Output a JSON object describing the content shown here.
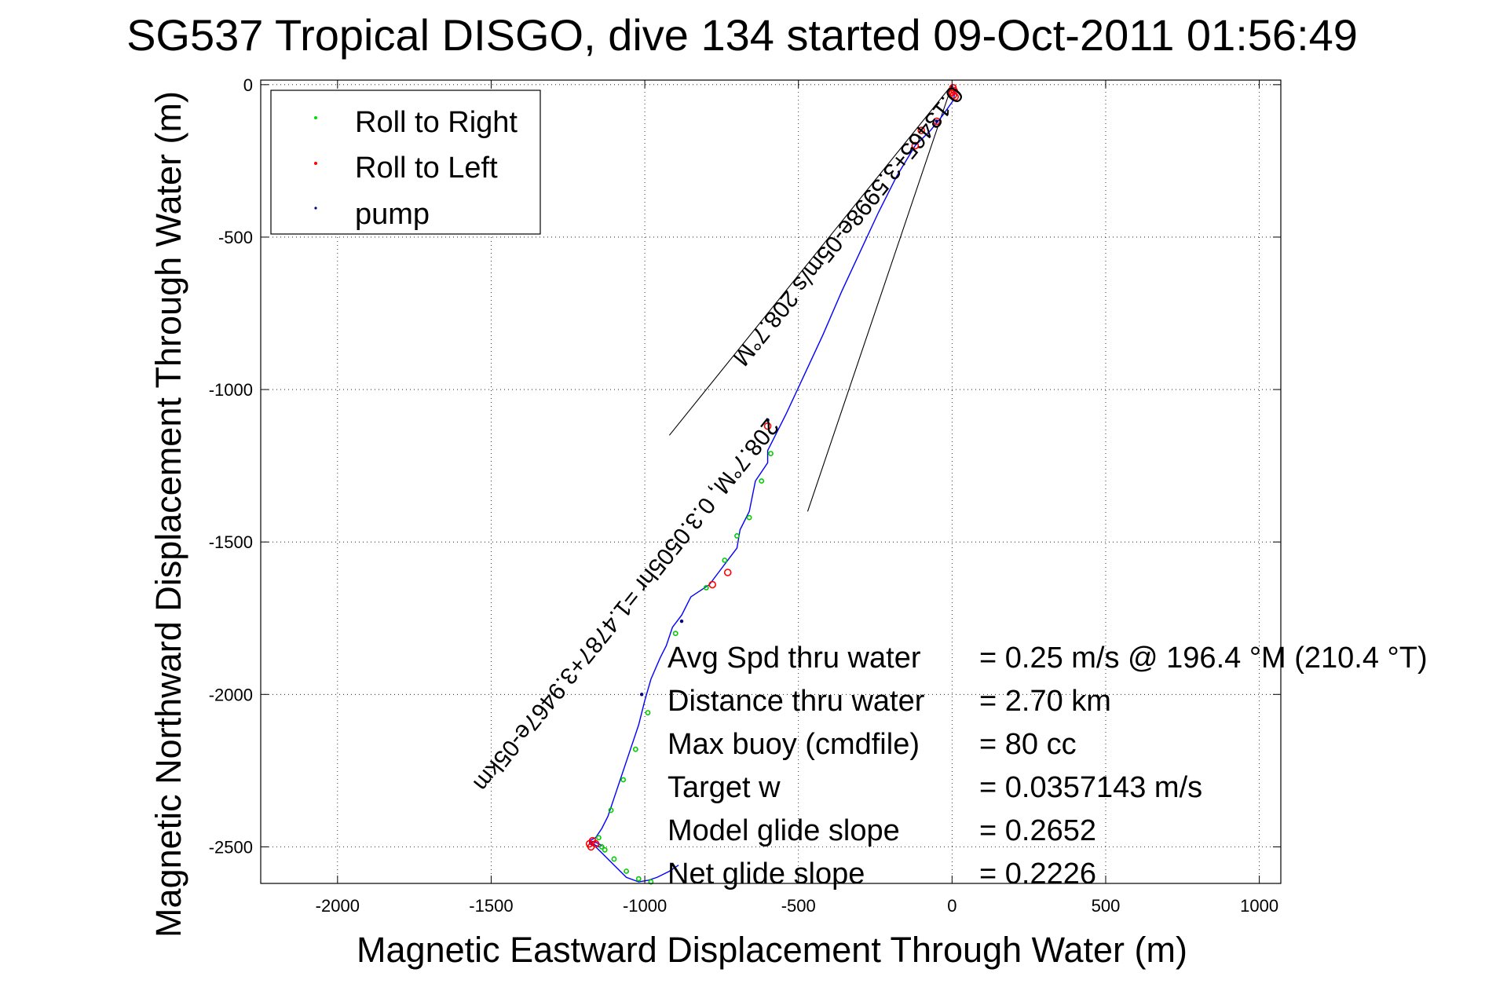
{
  "chart_data": {
    "type": "line",
    "title": "SG537 Tropical DISGO, dive 134 started 09-Oct-2011 01:56:49",
    "xlabel": "Magnetic Eastward Displacement Through Water (m)",
    "ylabel": "Magnetic Northward Displacement Through Water (m)",
    "xlim": [
      -2250,
      1070
    ],
    "ylim": [
      -2620,
      15
    ],
    "xticks": [
      -2000,
      -1500,
      -1000,
      -500,
      0,
      500,
      1000
    ],
    "xtick_labels": [
      "-2000",
      "-1500",
      "-1000",
      "-500",
      "0",
      "500",
      "1000"
    ],
    "yticks": [
      0,
      -500,
      -1000,
      -1500,
      -2000,
      -2500
    ],
    "ytick_labels": [
      "0",
      "-500",
      "-1000",
      "-1500",
      "-2000",
      "-2500"
    ],
    "grid": true,
    "legend_position": "top-left",
    "legend": [
      {
        "label": "Roll to Right",
        "color": "#00dd00"
      },
      {
        "label": "Roll to Left",
        "color": "#ff0000"
      },
      {
        "label": "pump",
        "color": "#000080"
      }
    ],
    "track": {
      "name": "track",
      "color": "#0000ff",
      "x": [
        0,
        8,
        5,
        -30,
        -70,
        -120,
        -180,
        -240,
        -300,
        -360,
        -420,
        -480,
        -540,
        -580,
        -600,
        -600,
        -640,
        -660,
        -690,
        -700,
        -730,
        -760,
        -790,
        -820,
        -850,
        -880,
        -910,
        -930,
        -950,
        -980,
        -1000,
        -1020,
        -1040,
        -1060,
        -1080,
        -1100,
        -1120,
        -1140,
        -1160,
        -1180,
        -1170,
        -1150,
        -1140,
        -1160,
        -1180,
        -1180,
        -1160,
        -1140,
        -1100,
        -1060,
        -1020,
        -990,
        -960,
        -920,
        -890
      ],
      "y": [
        0,
        -30,
        -50,
        -100,
        -150,
        -200,
        -300,
        -420,
        -550,
        -680,
        -820,
        -950,
        -1080,
        -1160,
        -1200,
        -1240,
        -1300,
        -1400,
        -1460,
        -1520,
        -1560,
        -1600,
        -1640,
        -1660,
        -1680,
        -1740,
        -1780,
        -1840,
        -1880,
        -1950,
        -2020,
        -2100,
        -2160,
        -2220,
        -2280,
        -2340,
        -2400,
        -2440,
        -2470,
        -2480,
        -2490,
        -2500,
        -2495,
        -2485,
        -2480,
        -2490,
        -2500,
        -2520,
        -2560,
        -2600,
        -2615,
        -2610,
        -2600,
        -2580,
        -2560
      ]
    },
    "roll_to_right": {
      "x": [
        -590,
        -620,
        -660,
        -700,
        -740,
        -800,
        -900,
        -990,
        -1030,
        -1070,
        -1110,
        -1150,
        -1140,
        -1130,
        -1100,
        -1060,
        -1020,
        -980
      ],
      "y": [
        -1210,
        -1300,
        -1420,
        -1480,
        -1560,
        -1650,
        -1800,
        -2060,
        -2180,
        -2280,
        -2380,
        -2470,
        -2500,
        -2510,
        -2540,
        -2580,
        -2605,
        -2615
      ]
    },
    "roll_to_left": {
      "x": [
        3,
        7,
        4,
        10,
        0,
        -50,
        -100,
        -120,
        -600,
        -730,
        -780,
        -1170,
        -1180,
        -1175,
        -1160
      ],
      "y": [
        -10,
        -20,
        -35,
        -40,
        -25,
        -120,
        -150,
        -200,
        -1120,
        -1600,
        -1640,
        -2480,
        -2490,
        -2500,
        -2490
      ]
    },
    "pump": {
      "x": [
        -50,
        -600,
        -880,
        -1010
      ],
      "y": [
        -120,
        -1100,
        -1760,
        -2000
      ]
    },
    "bearing_lines": [
      {
        "x": [
          0,
          -920
        ],
        "y": [
          0,
          -1150
        ]
      },
      {
        "x": [
          0,
          -470
        ],
        "y": [
          0,
          -1400
        ]
      }
    ],
    "bearing_annotations": [
      {
        "text": "0.13465+3.5998e-05m/s 208.7°M",
        "angle_deg": 208.7,
        "anchor_x": 0,
        "anchor_y": 0
      },
      {
        "text": "208.7°M, 0.3.0505hr =1.4787+3.9467e-05km",
        "angle_deg": 208.7,
        "anchor_x": -600,
        "anchor_y": -1090
      }
    ],
    "stats": [
      {
        "label": "Avg Spd thru water",
        "value": "=  0.25 m/s @ 196.4 °M (210.4 °T)"
      },
      {
        "label": "Distance thru water",
        "value": "=  2.70 km"
      },
      {
        "label": "Max buoy (cmdfile)",
        "value": "= 80 cc"
      },
      {
        "label": "Target w",
        "value": "= 0.0357143 m/s"
      },
      {
        "label": "Model glide slope",
        "value": "= 0.2652"
      },
      {
        "label": "Net glide slope",
        "value": "= 0.2226"
      }
    ]
  }
}
